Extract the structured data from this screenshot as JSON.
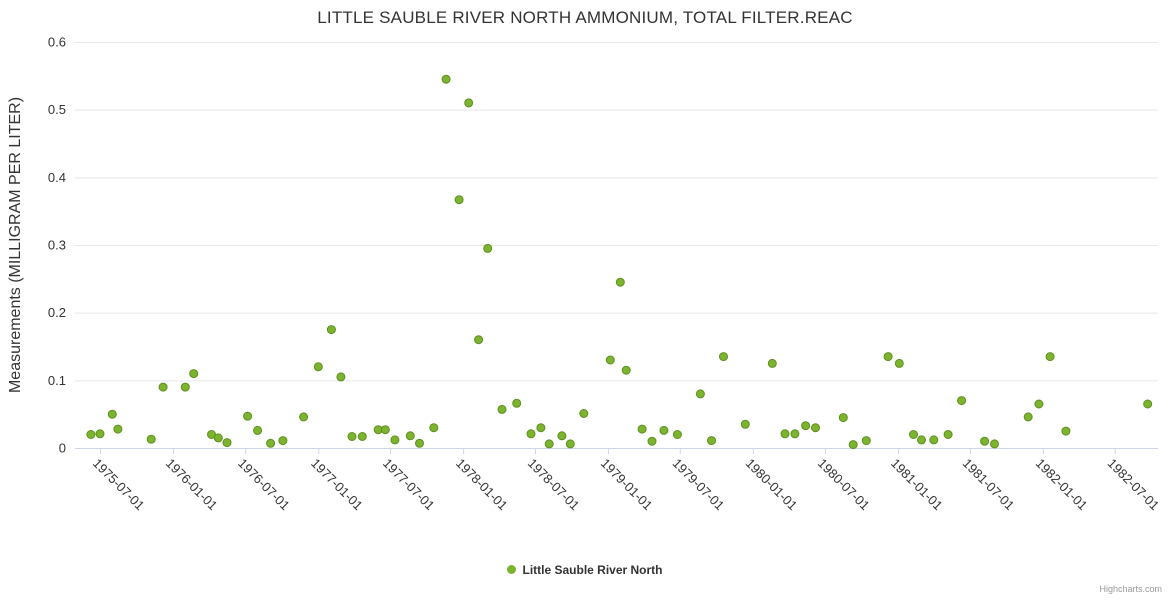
{
  "credits": "Highcharts.com",
  "colors": {
    "grid": "#e6e6e6",
    "axis": "#ccd6eb",
    "text": "#333333",
    "title": "#333333",
    "credits": "#999999"
  },
  "chart_data": {
    "type": "scatter",
    "title": "LITTLE SAUBLE RIVER NORTH AMMONIUM, TOTAL FILTER.REAC",
    "xlabel": "",
    "ylabel": "Measurements (MILLIGRAM PER LITER)",
    "ylim": [
      0,
      0.6
    ],
    "yticks": [
      0,
      0.1,
      0.2,
      0.3,
      0.4,
      0.5,
      0.6
    ],
    "ytick_labels": [
      "0",
      "0.1",
      "0.2",
      "0.3",
      "0.4",
      "0.5",
      "0.6"
    ],
    "xlim": [
      "1975-04-29",
      "1982-10-18"
    ],
    "xticks": [
      "1975-07-01",
      "1976-01-01",
      "1976-07-01",
      "1977-01-01",
      "1977-07-01",
      "1978-01-01",
      "1978-07-01",
      "1979-01-01",
      "1979-07-01",
      "1980-01-01",
      "1980-07-01",
      "1981-01-01",
      "1981-07-01",
      "1982-01-01",
      "1982-07-01"
    ],
    "grid": true,
    "legend_position": "bottom-center",
    "series": [
      {
        "name": "Little Sauble River North",
        "color": "#7cb32f",
        "stroke": "#5f8f1f",
        "points": [
          [
            "1975-06-08",
            0.02
          ],
          [
            "1975-07-01",
            0.021
          ],
          [
            "1975-08-01",
            0.05
          ],
          [
            "1975-08-15",
            0.028
          ],
          [
            "1975-11-07",
            0.013
          ],
          [
            "1975-12-07",
            0.09
          ],
          [
            "1976-02-01",
            0.09
          ],
          [
            "1976-02-22",
            0.11
          ],
          [
            "1976-04-07",
            0.02
          ],
          [
            "1976-04-24",
            0.015
          ],
          [
            "1976-05-16",
            0.008
          ],
          [
            "1976-07-07",
            0.047
          ],
          [
            "1976-08-01",
            0.026
          ],
          [
            "1976-09-03",
            0.007
          ],
          [
            "1976-10-04",
            0.011
          ],
          [
            "1976-11-25",
            0.046
          ],
          [
            "1977-01-01",
            0.12
          ],
          [
            "1977-02-03",
            0.175
          ],
          [
            "1977-02-27",
            0.105
          ],
          [
            "1977-03-27",
            0.017
          ],
          [
            "1977-04-22",
            0.017
          ],
          [
            "1977-06-01",
            0.027
          ],
          [
            "1977-06-19",
            0.027
          ],
          [
            "1977-07-13",
            0.012
          ],
          [
            "1977-08-21",
            0.018
          ],
          [
            "1977-09-13",
            0.007
          ],
          [
            "1977-10-19",
            0.03
          ],
          [
            "1977-11-19",
            0.545
          ],
          [
            "1977-12-22",
            0.367
          ],
          [
            "1978-01-15",
            0.51
          ],
          [
            "1978-02-09",
            0.16
          ],
          [
            "1978-03-04",
            0.295
          ],
          [
            "1978-04-09",
            0.057
          ],
          [
            "1978-05-16",
            0.066
          ],
          [
            "1978-06-21",
            0.021
          ],
          [
            "1978-07-16",
            0.03
          ],
          [
            "1978-08-06",
            0.006
          ],
          [
            "1978-09-07",
            0.018
          ],
          [
            "1978-09-28",
            0.006
          ],
          [
            "1978-11-01",
            0.051
          ],
          [
            "1979-01-07",
            0.13
          ],
          [
            "1979-02-01",
            0.245
          ],
          [
            "1979-02-16",
            0.115
          ],
          [
            "1979-03-28",
            0.028
          ],
          [
            "1979-04-22",
            0.01
          ],
          [
            "1979-05-22",
            0.026
          ],
          [
            "1979-06-25",
            0.02
          ],
          [
            "1979-08-22",
            0.08
          ],
          [
            "1979-09-19",
            0.011
          ],
          [
            "1979-10-19",
            0.135
          ],
          [
            "1979-12-13",
            0.035
          ],
          [
            "1980-02-19",
            0.125
          ],
          [
            "1980-03-22",
            0.021
          ],
          [
            "1980-04-16",
            0.021
          ],
          [
            "1980-05-13",
            0.033
          ],
          [
            "1980-06-07",
            0.03
          ],
          [
            "1980-08-16",
            0.045
          ],
          [
            "1980-09-10",
            0.005
          ],
          [
            "1980-10-13",
            0.011
          ],
          [
            "1980-12-07",
            0.135
          ],
          [
            "1981-01-04",
            0.125
          ],
          [
            "1981-02-09",
            0.02
          ],
          [
            "1981-03-01",
            0.012
          ],
          [
            "1981-04-01",
            0.012
          ],
          [
            "1981-05-07",
            0.02
          ],
          [
            "1981-06-10",
            0.07
          ],
          [
            "1981-08-07",
            0.01
          ],
          [
            "1981-09-01",
            0.006
          ],
          [
            "1981-11-25",
            0.046
          ],
          [
            "1981-12-22",
            0.065
          ],
          [
            "1982-01-19",
            0.135
          ],
          [
            "1982-02-28",
            0.025
          ],
          [
            "1982-09-22",
            0.065
          ]
        ]
      }
    ]
  }
}
